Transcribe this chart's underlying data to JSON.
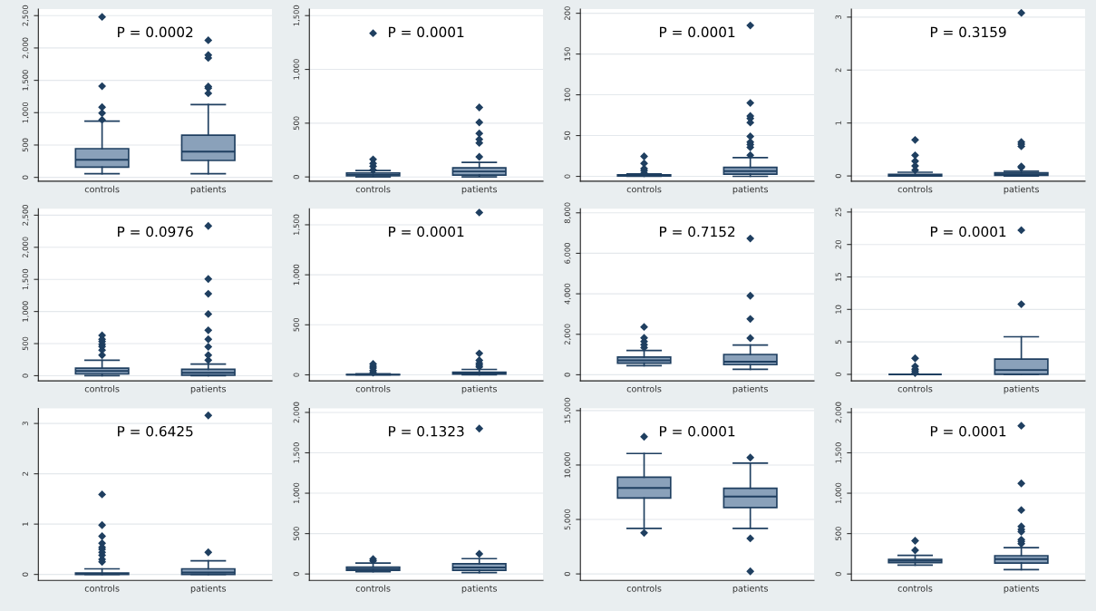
{
  "chart_data": [
    {
      "type": "box",
      "categories": [
        "controls",
        "patients"
      ],
      "annotations": [
        "P = 0.0002"
      ],
      "ylim": [
        -60,
        2600
      ],
      "yticks": [
        0,
        500,
        {
          "value": 1000,
          "label": "1,000"
        },
        {
          "value": 1500,
          "label": "1,500"
        },
        {
          "value": 2000,
          "label": "2,000"
        },
        {
          "value": 2500,
          "label": "2,500"
        }
      ],
      "grid": "y",
      "marker": "diamond",
      "color": "#8aa1ba",
      "boxes": [
        {
          "low": 57,
          "q1": 159,
          "median": 273,
          "q3": 443,
          "high": 869,
          "outliers": [
            890,
            994,
            1085,
            1409,
            2480
          ]
        },
        {
          "low": 57,
          "q1": 261,
          "median": 398,
          "q3": 653,
          "high": 1125,
          "outliers": [
            1300,
            1380,
            1403,
            1846,
            1891,
            2119
          ]
        }
      ]
    },
    {
      "type": "box",
      "categories": [
        "controls",
        "patients"
      ],
      "annotations": [
        "P = 0.0001"
      ],
      "ylim": [
        -40,
        1560
      ],
      "yticks": [
        0,
        500,
        {
          "value": 1000,
          "label": "1,000"
        },
        {
          "value": 1500,
          "label": "1,500"
        }
      ],
      "grid": "y",
      "marker": "diamond",
      "color": "#8aa1ba",
      "boxes": [
        {
          "low": 0,
          "q1": 10,
          "median": 20,
          "q3": 37,
          "high": 60,
          "outliers": [
            65,
            99,
            126,
            163,
            1336
          ]
        },
        {
          "low": 0,
          "q1": 17,
          "median": 51,
          "q3": 85,
          "high": 136,
          "outliers": [
            187,
            316,
            350,
            405,
            507,
            646
          ]
        }
      ]
    },
    {
      "type": "box",
      "categories": [
        "controls",
        "patients"
      ],
      "annotations": [
        "P = 0.0001"
      ],
      "ylim": [
        -6,
        205
      ],
      "yticks": [
        0,
        50,
        100,
        150,
        200
      ],
      "grid": "y",
      "marker": "diamond",
      "color": "#8aa1ba",
      "boxes": [
        {
          "low": 0,
          "q1": 0.5,
          "median": 1,
          "q3": 2,
          "high": 3,
          "outliers": [
            4,
            7,
            9.5,
            16,
            24.5
          ]
        },
        {
          "low": 0,
          "q1": 2.7,
          "median": 6.4,
          "q3": 11,
          "high": 23,
          "outliers": [
            26,
            35.5,
            39,
            42,
            49,
            66,
            71,
            74,
            90,
            185
          ]
        }
      ]
    },
    {
      "type": "box",
      "categories": [
        "controls",
        "patients"
      ],
      "annotations": [
        "P = 0.3159"
      ],
      "ylim": [
        -0.1,
        3.15
      ],
      "yticks": [
        0,
        1,
        2,
        3
      ],
      "grid": "y",
      "marker": "diamond",
      "color": "#8aa1ba",
      "boxes": [
        {
          "low": 0,
          "q1": 0,
          "median": 0.01,
          "q3": 0.03,
          "high": 0.07,
          "outliers": [
            0.11,
            0.19,
            0.28,
            0.39,
            0.68
          ]
        },
        {
          "low": 0,
          "q1": 0.01,
          "median": 0.03,
          "q3": 0.06,
          "high": 0.09,
          "outliers": [
            0.16,
            0.18,
            0.56,
            0.6,
            0.64,
            3.08
          ]
        }
      ]
    },
    {
      "type": "box",
      "categories": [
        "controls",
        "patients"
      ],
      "annotations": [
        "P = 0.0976"
      ],
      "ylim": [
        -80,
        2600
      ],
      "yticks": [
        0,
        500,
        {
          "value": 1000,
          "label": "1,000"
        },
        {
          "value": 1500,
          "label": "1,500"
        },
        {
          "value": 2000,
          "label": "2,000"
        },
        {
          "value": 2500,
          "label": "2,500"
        }
      ],
      "grid": "y",
      "marker": "diamond",
      "color": "#8aa1ba",
      "boxes": [
        {
          "low": 0,
          "q1": 28,
          "median": 73,
          "q3": 118,
          "high": 242,
          "outliers": [
            320,
            399,
            455,
            489,
            534,
            567,
            629
          ]
        },
        {
          "low": 0,
          "q1": 6,
          "median": 45,
          "q3": 101,
          "high": 180,
          "outliers": [
            242,
            320,
            450,
            567,
            708,
            961,
            1276,
            1506,
            2332
          ]
        }
      ]
    },
    {
      "type": "box",
      "categories": [
        "controls",
        "patients"
      ],
      "annotations": [
        "P = 0.0001"
      ],
      "ylim": [
        -60,
        1660
      ],
      "yticks": [
        0,
        500,
        {
          "value": 1000,
          "label": "1,000"
        },
        {
          "value": 1500,
          "label": "1,500"
        }
      ],
      "grid": "y",
      "marker": "diamond",
      "color": "#8aa1ba",
      "boxes": [
        {
          "low": 0,
          "q1": 0,
          "median": 1,
          "q3": 3,
          "high": 11,
          "outliers": [
            22,
            44,
            69,
            87,
            109
          ]
        },
        {
          "low": 0,
          "q1": 8,
          "median": 16,
          "q3": 26,
          "high": 54,
          "outliers": [
            80,
            98,
            116,
            145,
            214,
            1623
          ]
        }
      ]
    },
    {
      "type": "box",
      "categories": [
        "controls",
        "patients"
      ],
      "annotations": [
        "P = 0.7152"
      ],
      "ylim": [
        -300,
        8200
      ],
      "yticks": [
        0,
        {
          "value": 2000,
          "label": "2,000"
        },
        {
          "value": 4000,
          "label": "4,000"
        },
        {
          "value": 6000,
          "label": "6,000"
        },
        {
          "value": 8000,
          "label": "8,000"
        }
      ],
      "grid": "y",
      "marker": "diamond",
      "color": "#8aa1ba",
      "boxes": [
        {
          "low": 447,
          "q1": 573,
          "median": 716,
          "q3": 877,
          "high": 1199,
          "outliers": [
            1343,
            1486,
            1647,
            1826,
            2363
          ]
        },
        {
          "low": 269,
          "q1": 501,
          "median": 644,
          "q3": 1002,
          "high": 1468,
          "outliers": [
            1808,
            2757,
            3902,
            6730
          ]
        }
      ]
    },
    {
      "type": "box",
      "categories": [
        "controls",
        "patients"
      ],
      "annotations": [
        "P = 0.0001"
      ],
      "ylim": [
        -1,
        25.5
      ],
      "yticks": [
        0,
        5,
        10,
        15,
        20,
        25
      ],
      "grid": "y",
      "marker": "diamond",
      "color": "#8aa1ba",
      "boxes": [
        {
          "low": 0,
          "q1": 0,
          "median": 0,
          "q3": 0,
          "high": 0,
          "outliers": [
            0.2,
            0.5,
            0.8,
            1.24,
            2.47
          ]
        },
        {
          "low": 0,
          "q1": 0,
          "median": 0.67,
          "q3": 2.36,
          "high": 5.79,
          "outliers": [
            10.8,
            22.2
          ]
        }
      ]
    },
    {
      "type": "box",
      "categories": [
        "controls",
        "patients"
      ],
      "annotations": [
        "P = 0.6425"
      ],
      "ylim": [
        -0.12,
        3.3
      ],
      "yticks": [
        0,
        1,
        2,
        3
      ],
      "grid": "y",
      "marker": "diamond",
      "color": "#8aa1ba",
      "boxes": [
        {
          "low": 0,
          "q1": 0,
          "median": 0.01,
          "q3": 0.03,
          "high": 0.11,
          "outliers": [
            0.25,
            0.3,
            0.38,
            0.44,
            0.5,
            0.54,
            0.62,
            0.76,
            0.98,
            1.59
          ]
        },
        {
          "low": 0,
          "q1": 0,
          "median": 0.04,
          "q3": 0.11,
          "high": 0.27,
          "outliers": [
            0.44,
            3.16
          ]
        }
      ]
    },
    {
      "type": "box",
      "categories": [
        "controls",
        "patients"
      ],
      "annotations": [
        "P = 0.1323"
      ],
      "ylim": [
        -80,
        2050
      ],
      "yticks": [
        0,
        500,
        {
          "value": 1000,
          "label": "1,000"
        },
        {
          "value": 1500,
          "label": "1,500"
        },
        {
          "value": 2000,
          "label": "2,000"
        }
      ],
      "grid": "y",
      "marker": "diamond",
      "color": "#8aa1ba",
      "boxes": [
        {
          "low": 28,
          "q1": 45,
          "median": 63,
          "q3": 86,
          "high": 136,
          "outliers": [
            163,
            185
          ]
        },
        {
          "low": 18,
          "q1": 45,
          "median": 81,
          "q3": 127,
          "high": 190,
          "outliers": [
            249,
            1800
          ]
        }
      ]
    },
    {
      "type": "box",
      "categories": [
        "controls",
        "patients"
      ],
      "annotations": [
        "P = 0.0001"
      ],
      "ylim": [
        -600,
        15200
      ],
      "yticks": [
        0,
        {
          "value": 5000,
          "label": "5,000"
        },
        {
          "value": 10000,
          "label": "10,000"
        },
        {
          "value": 15000,
          "label": "15,000"
        }
      ],
      "grid": "y",
      "marker": "diamond",
      "color": "#8aa1ba",
      "boxes": [
        {
          "low": 4180,
          "q1": 6970,
          "median": 7890,
          "q3": 8880,
          "high": 11060,
          "outliers": [
            3770,
            12600
          ]
        },
        {
          "low": 4180,
          "q1": 6090,
          "median": 7110,
          "q3": 7860,
          "high": 10170,
          "outliers": [
            10680,
            3260,
            240
          ]
        }
      ]
    },
    {
      "type": "box",
      "categories": [
        "controls",
        "patients"
      ],
      "annotations": [
        "P = 0.0001"
      ],
      "ylim": [
        -80,
        2050
      ],
      "yticks": [
        0,
        500,
        {
          "value": 1000,
          "label": "1,000"
        },
        {
          "value": 1500,
          "label": "1,500"
        },
        {
          "value": 2000,
          "label": "2,000"
        }
      ],
      "grid": "y",
      "marker": "diamond",
      "color": "#8aa1ba",
      "boxes": [
        {
          "low": 109,
          "q1": 140,
          "median": 163,
          "q3": 181,
          "high": 231,
          "outliers": [
            294,
            411
          ]
        },
        {
          "low": 54,
          "q1": 136,
          "median": 185,
          "q3": 226,
          "high": 326,
          "outliers": [
            375,
            402,
            425,
            524,
            551,
            588,
            791,
            1121,
            1835
          ]
        }
      ]
    }
  ]
}
